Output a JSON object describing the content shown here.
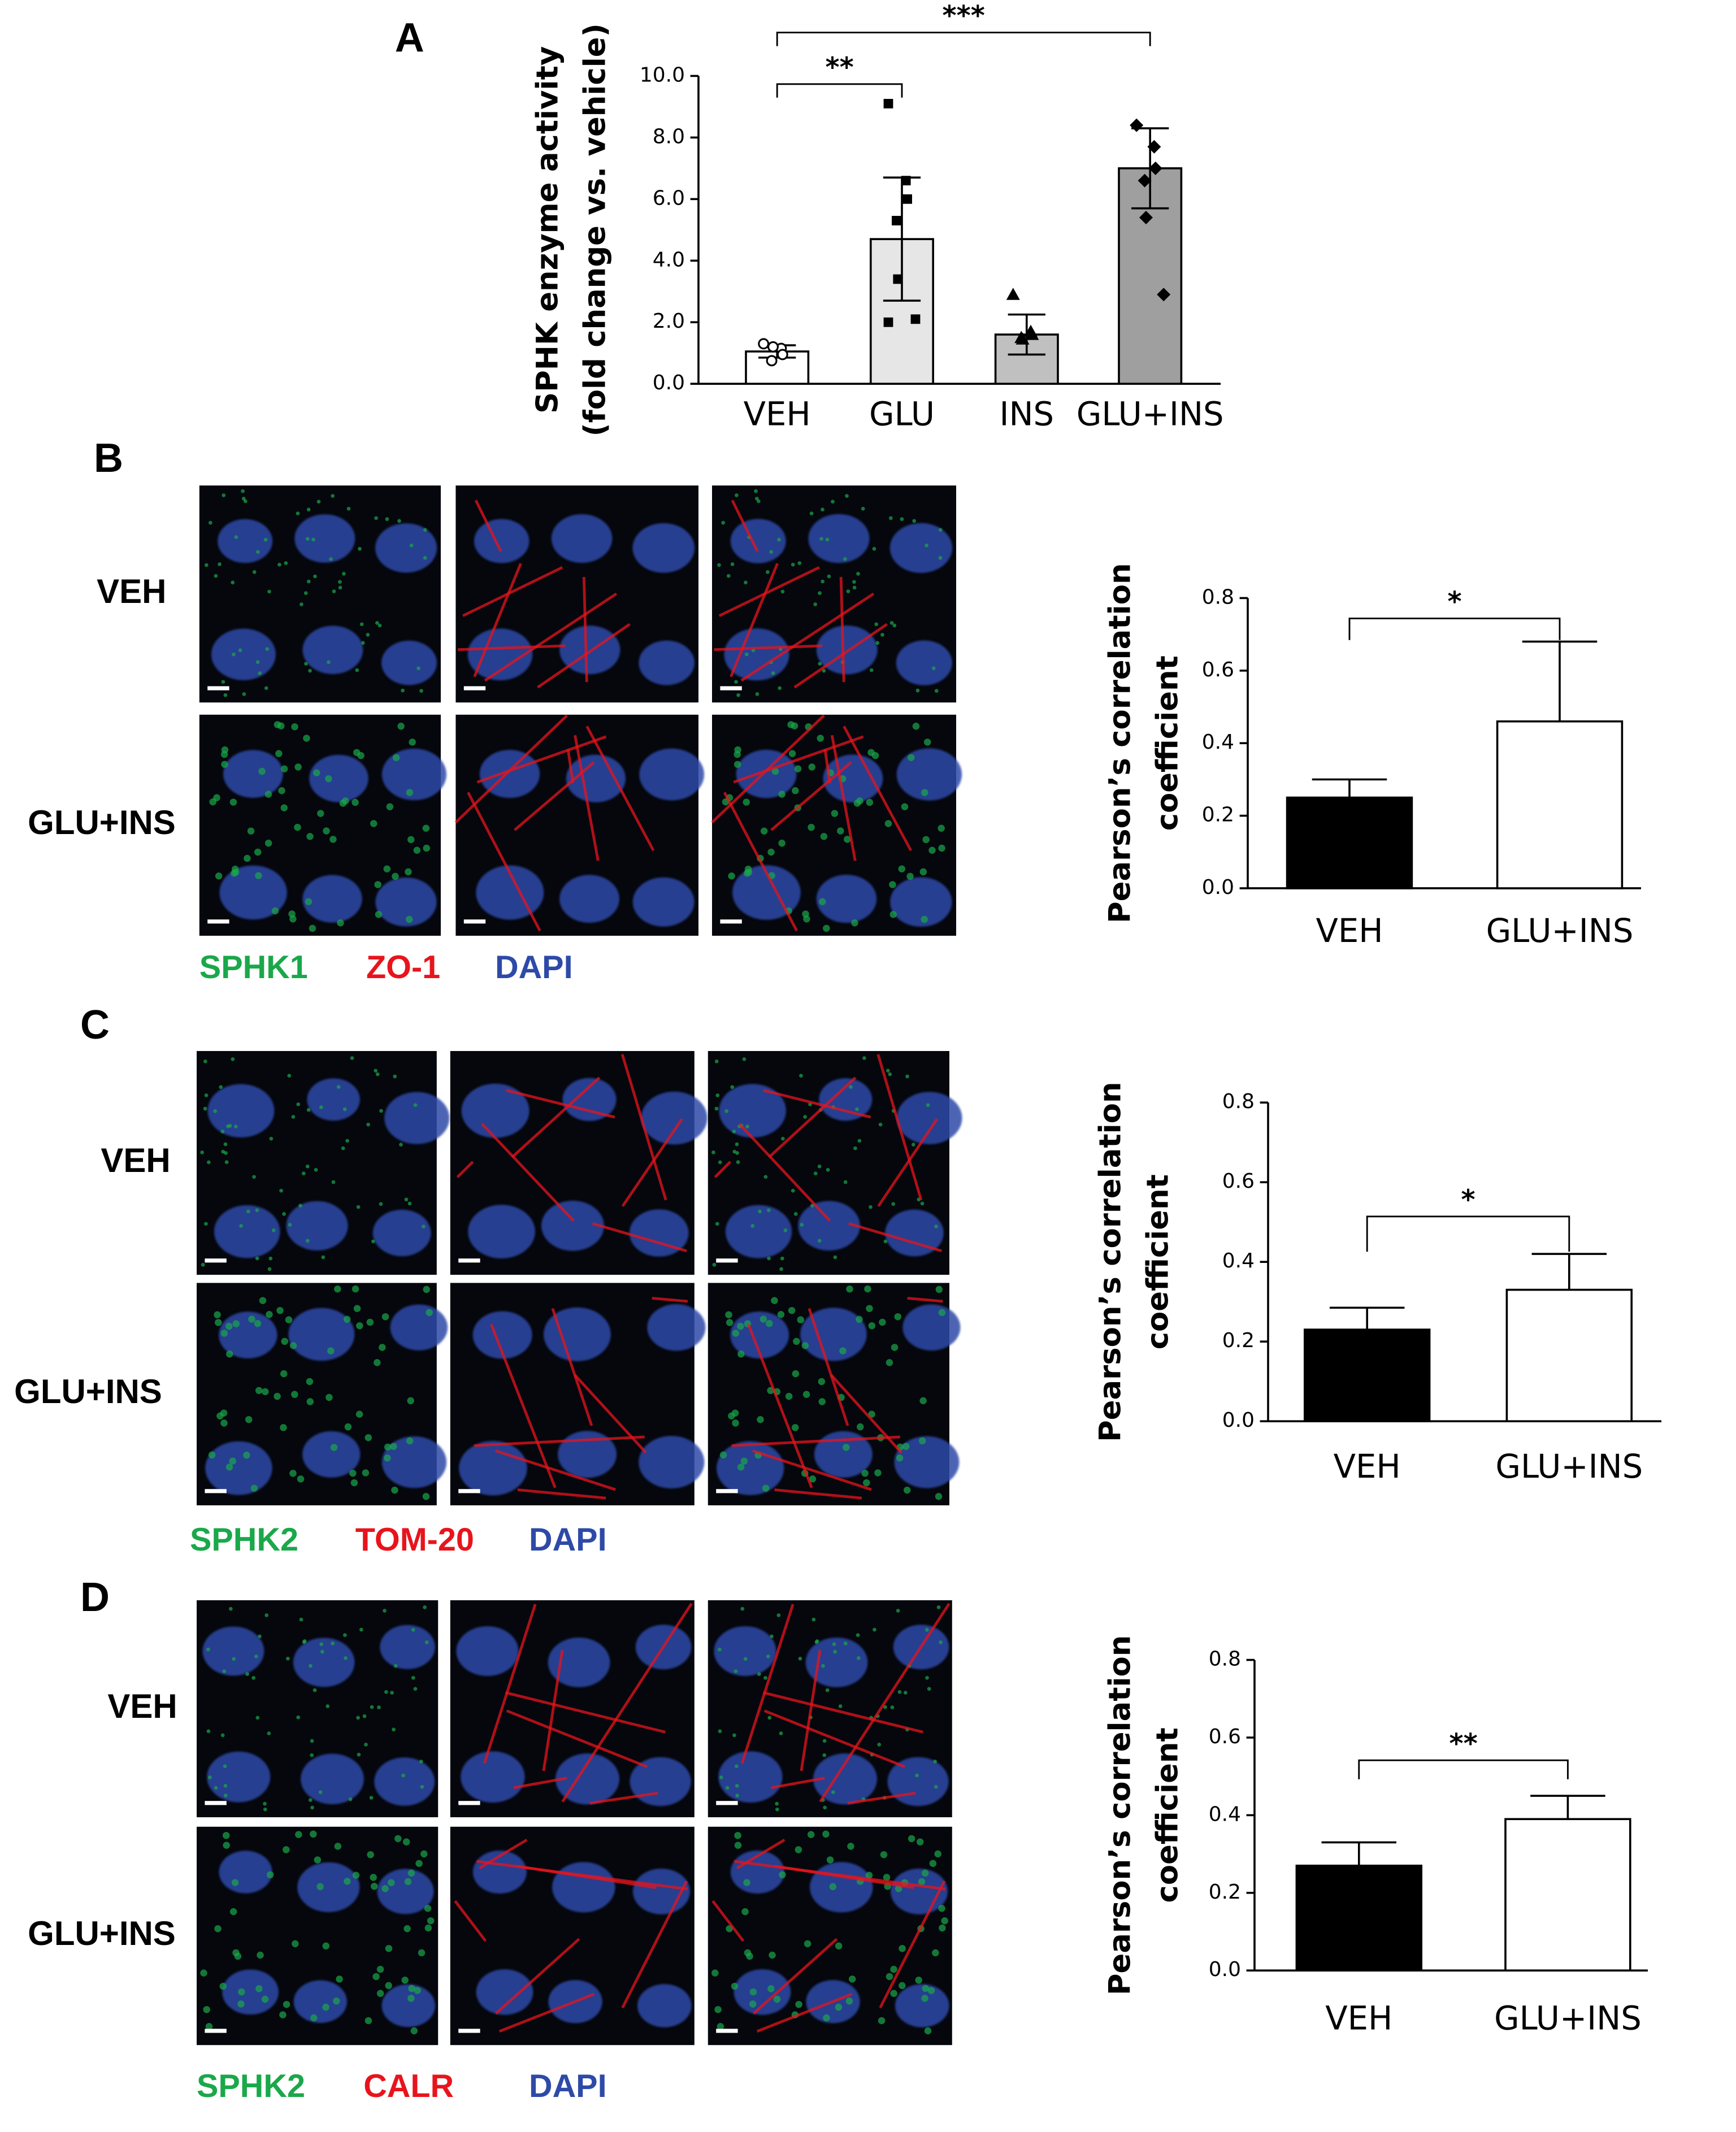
{
  "chart_data": [
    {
      "type": "bar",
      "panel": "A",
      "ylabel": [
        "SPHK enzyme activity",
        "(fold change vs. vehicle)"
      ],
      "categories": [
        "VEH",
        "GLU",
        "INS",
        "GLU+INS"
      ],
      "values": [
        1.05,
        4.7,
        1.6,
        7.0
      ],
      "errors": [
        0.2,
        2.0,
        0.65,
        1.3
      ],
      "error_style": "both",
      "colors": [
        "#ffffff",
        "#e6e6e6",
        "#c0c0c0",
        "#9f9f9f"
      ],
      "points": [
        [
          1.3,
          1.15,
          0.95,
          0.75,
          1.2
        ],
        [
          9.1,
          6.6,
          6.0,
          5.3,
          3.4,
          2.1,
          2.0
        ],
        [
          2.9,
          1.7,
          1.6,
          1.5,
          1.45
        ],
        [
          8.4,
          7.7,
          7.0,
          6.6,
          5.4,
          2.9
        ]
      ],
      "markers": [
        "circle-open",
        "square",
        "triangle",
        "diamond"
      ],
      "ylim": [
        0,
        10
      ],
      "yticks": [
        {
          "value": 0,
          "label": "0.0"
        },
        {
          "value": 2,
          "label": "2.0"
        },
        {
          "value": 4,
          "label": "4.0"
        },
        {
          "value": 6,
          "label": "6.0"
        },
        {
          "value": 8,
          "label": "8.0"
        },
        {
          "value": 10,
          "label": "10.0"
        }
      ],
      "brackets": [
        {
          "from": "VEH",
          "to": "GLU",
          "label": "**"
        },
        {
          "from": "VEH",
          "to": "GLU+INS",
          "label": "***"
        }
      ]
    },
    {
      "type": "bar",
      "ylabel": [
        "Pearson’s correlation",
        "coefficient"
      ],
      "categories": [
        "VEH",
        "GLU+INS"
      ],
      "values": [
        0.25,
        0.46
      ],
      "errors": [
        0.05,
        0.22
      ],
      "error_style": "up",
      "colors": [
        "#000000",
        "#ffffff"
      ],
      "ylim": [
        0,
        0.8
      ],
      "yticks": [
        {
          "value": 0,
          "label": "0.0"
        },
        {
          "value": 0.2,
          "label": "0.2"
        },
        {
          "value": 0.4,
          "label": "0.4"
        },
        {
          "value": 0.6,
          "label": "0.6"
        },
        {
          "value": 0.8,
          "label": "0.8"
        }
      ],
      "brackets": [
        {
          "from": "VEH",
          "to": "GLU+INS",
          "label": "*"
        }
      ]
    },
    {
      "type": "bar",
      "ylabel": [
        "Pearson’s correlation",
        "coefficient"
      ],
      "categories": [
        "VEH",
        "GLU+INS"
      ],
      "values": [
        0.23,
        0.33
      ],
      "errors": [
        0.055,
        0.09
      ],
      "error_style": "up",
      "colors": [
        "#000000",
        "#ffffff"
      ],
      "ylim": [
        0,
        0.8
      ],
      "yticks": [
        {
          "value": 0,
          "label": "0.0"
        },
        {
          "value": 0.2,
          "label": "0.2"
        },
        {
          "value": 0.4,
          "label": "0.4"
        },
        {
          "value": 0.6,
          "label": "0.6"
        },
        {
          "value": 0.8,
          "label": "0.8"
        }
      ],
      "brackets": [
        {
          "from": "VEH",
          "to": "GLU+INS",
          "label": "*"
        }
      ]
    },
    {
      "type": "bar",
      "ylabel": [
        "Pearson’s correlation",
        "coefficient"
      ],
      "categories": [
        "VEH",
        "GLU+INS"
      ],
      "values": [
        0.27,
        0.39
      ],
      "errors": [
        0.06,
        0.06
      ],
      "error_style": "up",
      "colors": [
        "#000000",
        "#ffffff"
      ],
      "ylim": [
        0,
        0.8
      ],
      "yticks": [
        {
          "value": 0,
          "label": "0.0"
        },
        {
          "value": 0.2,
          "label": "0.2"
        },
        {
          "value": 0.4,
          "label": "0.4"
        },
        {
          "value": 0.6,
          "label": "0.6"
        },
        {
          "value": 0.8,
          "label": "0.8"
        }
      ],
      "brackets": [
        {
          "from": "VEH",
          "to": "GLU+INS",
          "label": "**"
        }
      ]
    }
  ],
  "micrographs": [
    {
      "panel": "B",
      "rows": [
        "VEH",
        "GLU+INS"
      ],
      "stains": [
        {
          "name": "SPHK1",
          "color": "#1aa84a"
        },
        {
          "name": "ZO-1",
          "color": "#e8141c"
        },
        {
          "name": "DAPI",
          "color": "#2e4aa8"
        }
      ]
    },
    {
      "panel": "C",
      "rows": [
        "VEH",
        "GLU+INS"
      ],
      "stains": [
        {
          "name": "SPHK2",
          "color": "#1aa84a"
        },
        {
          "name": "TOM-20",
          "color": "#e8141c"
        },
        {
          "name": "DAPI",
          "color": "#2e4aa8"
        }
      ]
    },
    {
      "panel": "D",
      "rows": [
        "VEH",
        "GLU+INS"
      ],
      "stains": [
        {
          "name": "SPHK2",
          "color": "#1aa84a"
        },
        {
          "name": "CALR",
          "color": "#e8141c"
        },
        {
          "name": "DAPI",
          "color": "#2e4aa8"
        }
      ]
    }
  ]
}
